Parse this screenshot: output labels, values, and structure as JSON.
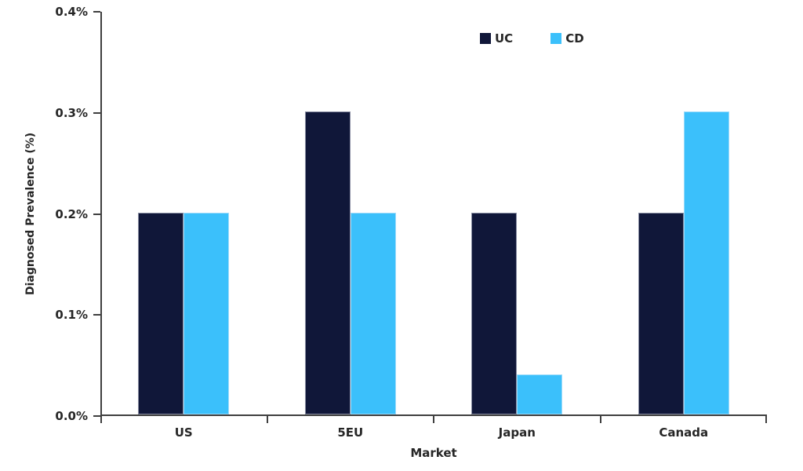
{
  "chart_data": {
    "type": "bar",
    "title": "",
    "xlabel": "Market",
    "ylabel": "Diagnosed Prevalence (%)",
    "categories": [
      "US",
      "5EU",
      "Japan",
      "Canada"
    ],
    "series": [
      {
        "name": "UC",
        "color": "#101739",
        "values": [
          0.2,
          0.3,
          0.2,
          0.2
        ]
      },
      {
        "name": "CD",
        "color": "#3BC0FB",
        "values": [
          0.2,
          0.2,
          0.04,
          0.3
        ]
      }
    ],
    "y_axis": {
      "min": 0,
      "max": 0.4,
      "tick_step": 0.1,
      "tick_labels": [
        "0.0%",
        "0.1%",
        "0.2%",
        "0.3%",
        "0.4%"
      ]
    },
    "ylim": [
      0,
      0.4
    ],
    "grid": false,
    "legend_position": "top-center"
  },
  "colors": {
    "axis": "#3f3f3f",
    "text": "#262626",
    "background": "#ffffff"
  }
}
